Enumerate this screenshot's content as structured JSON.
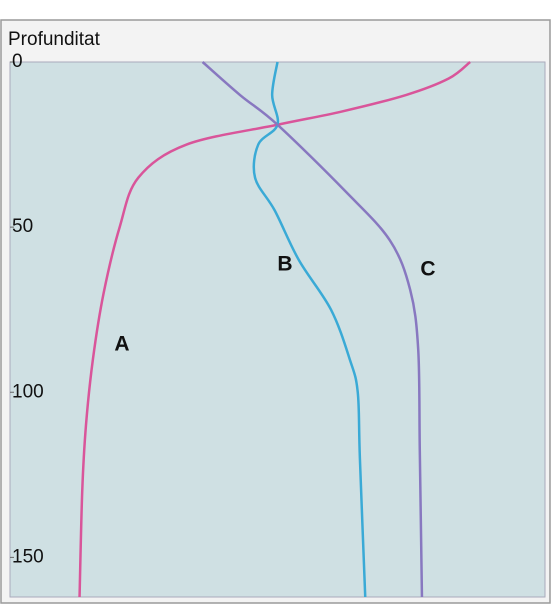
{
  "chart_data": {
    "type": "line",
    "y_label": "Profunditat",
    "ylim": [
      0,
      162
    ],
    "yticks": [
      0,
      50,
      100,
      150
    ],
    "y_inverted": true,
    "xlim": [
      0,
      100
    ],
    "series": [
      {
        "name": "A",
        "color": "#d9559a",
        "x": [
          86,
          82,
          74,
          62,
          50,
          33,
          24,
          20.5,
          17.5,
          15.5,
          14.2,
          13.5,
          13
        ],
        "y": [
          0,
          5,
          10,
          15,
          19,
          25,
          35,
          50,
          70,
          90,
          110,
          130,
          162
        ]
      },
      {
        "name": "B",
        "color": "#3aaad6",
        "x": [
          50,
          49,
          50,
          46.4,
          45.8,
          49.5,
          54,
          60,
          63.5,
          65,
          65.4,
          66.4
        ],
        "y": [
          0,
          10,
          19,
          25,
          35,
          45,
          60,
          75,
          90,
          100,
          120,
          162
        ]
      },
      {
        "name": "C",
        "color": "#8878c0",
        "x": [
          36,
          43,
          50,
          62.6,
          71,
          74.8,
          76.3,
          76.6,
          77
        ],
        "y": [
          0,
          10,
          19,
          39,
          54,
          69,
          87,
          118,
          162
        ]
      }
    ]
  }
}
